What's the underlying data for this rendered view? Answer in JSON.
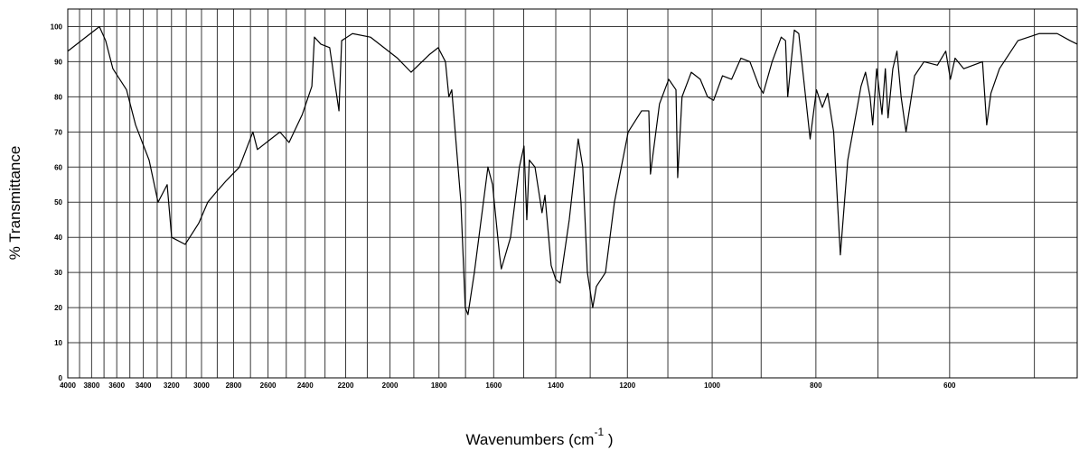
{
  "chart_data": {
    "type": "line",
    "y_label": "% Transmittance",
    "x_label": {
      "text": "Wavenumbers (cm",
      "sup": "-1",
      "end": " )"
    },
    "x_log": true,
    "xlim": [
      4000,
      456
    ],
    "ylim": [
      0,
      105
    ],
    "xticks": [
      4000,
      3800,
      3600,
      3400,
      3200,
      3000,
      2800,
      2600,
      2400,
      2200,
      2000,
      1800,
      1600,
      1400,
      1200,
      1000,
      800,
      600
    ],
    "xgrid": [
      3900,
      3700,
      3500,
      3300,
      3100,
      2900,
      2700,
      2500,
      2300,
      2100,
      1900,
      1700,
      1500,
      1300,
      1100,
      900,
      700,
      500
    ],
    "yticks": [
      0,
      10,
      20,
      30,
      40,
      50,
      60,
      70,
      80,
      90,
      100
    ],
    "grid": true,
    "series": [
      {
        "color": "#000000",
        "x": [
          4000,
          3847,
          3773,
          3737,
          3687,
          3630,
          3525,
          3457,
          3358,
          3294,
          3230,
          3199,
          3107,
          3018,
          2960,
          2904,
          2847,
          2765,
          2686,
          2660,
          2584,
          2534,
          2485,
          2415,
          2366,
          2353,
          2321,
          2277,
          2232,
          2219,
          2168,
          2086,
          1968,
          1911,
          1838,
          1803,
          1775,
          1762,
          1751,
          1717,
          1701,
          1691,
          1668,
          1620,
          1604,
          1580,
          1574,
          1543,
          1514,
          1499,
          1490,
          1482,
          1464,
          1442,
          1433,
          1414,
          1400,
          1387,
          1360,
          1334,
          1321,
          1308,
          1293,
          1283,
          1258,
          1234,
          1198,
          1164,
          1146,
          1142,
          1120,
          1098,
          1081,
          1077,
          1067,
          1046,
          1026,
          1010,
          997,
          978,
          959,
          940,
          922,
          904,
          896,
          879,
          862,
          854,
          850,
          838,
          830,
          810,
          799,
          789,
          780,
          770,
          759,
          747,
          726,
          719,
          712,
          708,
          702,
          694,
          689,
          685,
          678,
          672,
          666,
          659,
          647,
          634,
          616,
          605,
          599,
          593,
          582,
          559,
          554,
          549,
          539,
          518,
          495,
          476,
          463,
          456
        ],
        "values": [
          93,
          97,
          99,
          100,
          96,
          88,
          82,
          72,
          62,
          50,
          55,
          40,
          38,
          44,
          50,
          53,
          56,
          60,
          70,
          65,
          68,
          70,
          67,
          75,
          83,
          97,
          95,
          94,
          76,
          96,
          98,
          97,
          91,
          87,
          92,
          94,
          90,
          80,
          82,
          50,
          20,
          18,
          30,
          60,
          55,
          35,
          31,
          40,
          60,
          66,
          45,
          62,
          60,
          47,
          52,
          32,
          28,
          27,
          45,
          68,
          60,
          30,
          20,
          26,
          30,
          50,
          70,
          76,
          76,
          58,
          78,
          85,
          82,
          57,
          80,
          87,
          85,
          80,
          79,
          86,
          85,
          91,
          90,
          83,
          81,
          90,
          97,
          96,
          80,
          99,
          98,
          68,
          82,
          77,
          81,
          70,
          35,
          62,
          83,
          87,
          80,
          72,
          88,
          75,
          88,
          74,
          88,
          93,
          80,
          70,
          86,
          90,
          89,
          93,
          85,
          91,
          88,
          90,
          72,
          81,
          88,
          96,
          98,
          98,
          96,
          95
        ]
      }
    ]
  }
}
